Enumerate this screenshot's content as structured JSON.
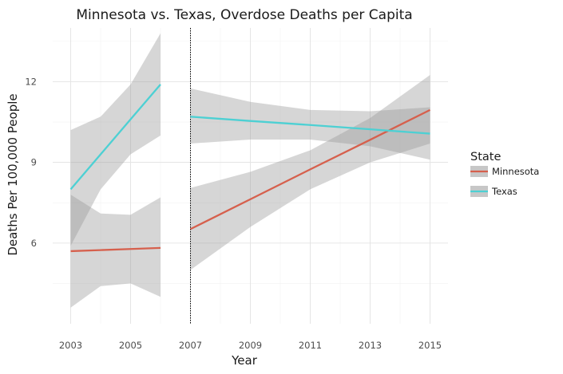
{
  "chart_data": {
    "type": "line",
    "title": "Minnesota vs. Texas, Overdose Deaths per Capita",
    "xlabel": "Year",
    "ylabel": "Deaths Per 100,000 People",
    "xlim": [
      2002.4,
      2015.6
    ],
    "ylim": [
      3.0,
      14.0
    ],
    "x_ticks": [
      "2003",
      "2005",
      "2007",
      "2009",
      "2011",
      "2013",
      "2015"
    ],
    "y_ticks": [
      "6",
      "9",
      "12"
    ],
    "grid": true,
    "vline": {
      "x": 2007,
      "style": "dotted"
    },
    "legend": {
      "title": "State",
      "placement": "right",
      "entries": [
        "Minnesota",
        "Texas"
      ]
    },
    "series": [
      {
        "name": "Minnesota",
        "color": "#d6604d",
        "segments": [
          {
            "x": [
              2003,
              2004,
              2005,
              2006
            ],
            "fit": [
              5.7,
              5.74,
              5.78,
              5.82
            ],
            "lower": [
              3.6,
              4.4,
              4.5,
              4.0
            ],
            "upper": [
              7.8,
              7.1,
              7.05,
              7.7
            ]
          },
          {
            "x": [
              2007,
              2009,
              2011,
              2013,
              2015
            ],
            "fit": [
              6.52,
              7.63,
              8.74,
              9.84,
              10.95
            ],
            "lower": [
              5.0,
              6.6,
              8.0,
              9.0,
              9.7
            ],
            "upper": [
              8.05,
              8.65,
              9.45,
              10.65,
              12.25
            ]
          }
        ]
      },
      {
        "name": "Texas",
        "color": "#4dd0d3",
        "segments": [
          {
            "x": [
              2003,
              2004,
              2005,
              2006
            ],
            "fit": [
              8.0,
              9.3,
              10.6,
              11.9
            ],
            "lower": [
              5.9,
              8.0,
              9.3,
              10.0
            ],
            "upper": [
              10.2,
              10.7,
              11.9,
              13.8
            ]
          },
          {
            "x": [
              2007,
              2009,
              2011,
              2013,
              2015
            ],
            "fit": [
              10.7,
              10.54,
              10.39,
              10.23,
              10.07
            ],
            "lower": [
              9.7,
              9.85,
              9.85,
              9.6,
              9.1
            ],
            "upper": [
              11.75,
              11.25,
              10.95,
              10.9,
              11.05
            ]
          }
        ]
      }
    ]
  }
}
